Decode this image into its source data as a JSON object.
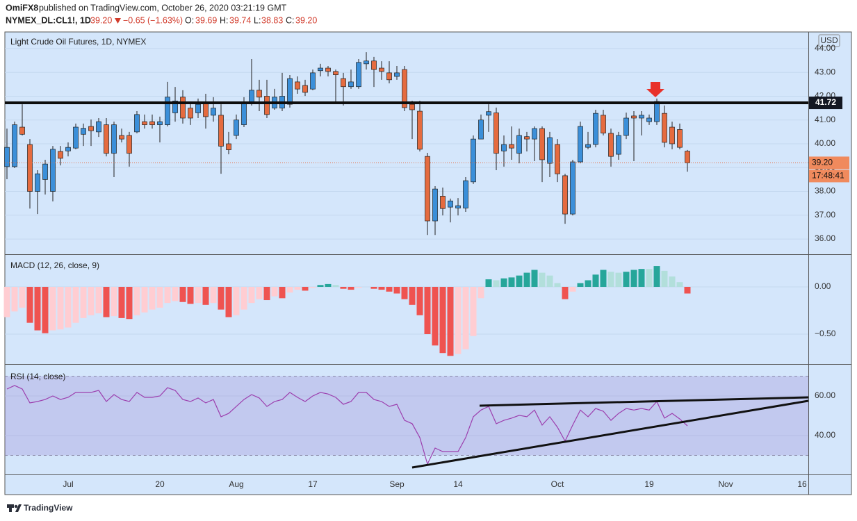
{
  "header": {
    "author": "OmiFX8",
    "text": "published on TradingView.com, October 26, 2020 03:21:19 GMT",
    "symbol": "NYMEX_DL:CL1!, 1D",
    "change": {
      "value": -0.65,
      "label": "−0.65"
    },
    "change_pct": {
      "value": -1.63,
      "label": "(−1.63%)"
    },
    "o_label": "O:",
    "h_label": "H:",
    "l_label": "L:",
    "c_label": "C:"
  },
  "footer": {
    "logo": "TradingView"
  },
  "chart_data": [
    {
      "type": "candlestick",
      "title": "Light Crude Oil Futures, 1D, NYMEX",
      "currency": "USD",
      "up_color": "#3b8fd9",
      "down_color": "#e56b3f",
      "categories": [
        null,
        null,
        null,
        null,
        null,
        null,
        null,
        null,
        "Jul",
        null,
        null,
        null,
        null,
        null,
        null,
        null,
        null,
        null,
        null,
        null,
        "20",
        null,
        null,
        null,
        null,
        null,
        null,
        null,
        null,
        null,
        "Aug",
        null,
        null,
        null,
        null,
        null,
        null,
        null,
        null,
        null,
        "17",
        null,
        null,
        null,
        null,
        null,
        null,
        null,
        null,
        null,
        null,
        "Sep",
        null,
        null,
        null,
        null,
        null,
        null,
        null,
        "14",
        null,
        null,
        null,
        null,
        null,
        null,
        null,
        null,
        null,
        null,
        null,
        null,
        "Oct",
        null,
        null,
        null,
        null,
        null,
        null,
        null,
        null,
        null,
        null,
        null,
        "19",
        null,
        null,
        null,
        null,
        null,
        null,
        null,
        null,
        null,
        "Nov",
        null,
        null,
        null,
        null,
        null,
        null,
        null,
        null,
        null,
        "16"
      ],
      "open": [
        39.04,
        39.04,
        40.7,
        39.97,
        38.0,
        38.5,
        38.0,
        39.68,
        39.7,
        39.82,
        40.4,
        40.73,
        40.5,
        40.8,
        39.6,
        40.35,
        40.35,
        40.5,
        40.93,
        40.93,
        40.8,
        40.8,
        41.3,
        41.96,
        41.5,
        41.3,
        41.72,
        41.2,
        41.2,
        40.0,
        40.35,
        40.8,
        41.72,
        42.25,
        42.0,
        41.5,
        41.5,
        41.66,
        42.6,
        42.45,
        42.3,
        43.07,
        43.18,
        43.04,
        42.74,
        42.4,
        42.4,
        43.36,
        43.48,
        43.18,
        42.98,
        42.83,
        43.12,
        41.66,
        41.37,
        39.47,
        36.76,
        37.8,
        37.34,
        37.3,
        37.3,
        38.4,
        40.2,
        41.2,
        41.3,
        39.7,
        39.97,
        39.6,
        40.3,
        40.2,
        40.64,
        39.18,
        39.97,
        38.66,
        37.05,
        39.24,
        39.85,
        39.97,
        41.2,
        40.44,
        39.56,
        40.35,
        41.17,
        41.08,
        40.93,
        40.93,
        41.28,
        40.7,
        40.6,
        39.69,
        null,
        null,
        null,
        null,
        null,
        null,
        null,
        null,
        null,
        null,
        null,
        null,
        null,
        null,
        null
      ],
      "high": [
        40.64,
        40.93,
        41.66,
        40.2,
        38.89,
        39.33,
        39.91,
        39.91,
        40.06,
        40.85,
        40.85,
        41.02,
        41.08,
        41.08,
        40.93,
        40.64,
        40.5,
        41.37,
        41.23,
        41.23,
        41.14,
        42.6,
        42.39,
        42.25,
        41.72,
        41.9,
        42.1,
        41.96,
        41.66,
        40.5,
        41.23,
        41.96,
        43.56,
        42.69,
        42.69,
        42.31,
        42.98,
        42.89,
        42.83,
        42.69,
        43.12,
        43.36,
        43.27,
        43.12,
        42.98,
        43.12,
        43.56,
        43.85,
        43.65,
        43.47,
        43.47,
        43.27,
        43.27,
        41.81,
        41.81,
        39.62,
        38.22,
        38.16,
        37.7,
        37.72,
        38.6,
        40.35,
        41.23,
        41.66,
        41.52,
        40.35,
        40.73,
        40.64,
        40.5,
        40.73,
        40.73,
        40.5,
        40.2,
        38.74,
        39.33,
        40.93,
        40.5,
        41.43,
        41.43,
        40.64,
        40.5,
        41.31,
        41.37,
        41.37,
        41.23,
        41.9,
        41.61,
        40.93,
        40.85,
        39.74,
        null,
        null,
        null,
        null,
        null,
        null,
        null,
        null,
        null,
        null,
        null,
        null,
        null,
        null,
        null
      ],
      "low": [
        38.51,
        38.98,
        40.35,
        37.28,
        37.05,
        37.87,
        37.58,
        39.09,
        39.47,
        39.77,
        39.91,
        39.91,
        40.29,
        39.47,
        38.6,
        40.06,
        39.04,
        40.44,
        40.64,
        40.64,
        40.06,
        40.73,
        40.93,
        40.85,
        40.79,
        41.08,
        40.64,
        40.93,
        38.74,
        39.56,
        40.2,
        40.7,
        41.61,
        41.37,
        41.08,
        41.43,
        41.37,
        41.52,
        42.1,
        42.01,
        42.25,
        42.83,
        42.83,
        41.72,
        41.61,
        42.31,
        42.31,
        43.12,
        42.39,
        42.69,
        42.54,
        42.69,
        41.37,
        40.2,
        39.68,
        36.17,
        36.17,
        36.99,
        36.7,
        36.99,
        37.14,
        38.31,
        40.2,
        40.5,
        38.89,
        39.04,
        39.33,
        39.18,
        39.68,
        39.27,
        38.39,
        38.6,
        38.39,
        36.64,
        36.99,
        39.18,
        39.77,
        39.85,
        40.35,
        39.04,
        39.33,
        40.2,
        39.27,
        40.35,
        40.79,
        40.79,
        39.85,
        39.77,
        39.77,
        38.83,
        null,
        null,
        null,
        null,
        null,
        null,
        null,
        null,
        null,
        null,
        null,
        null,
        null,
        null,
        null
      ],
      "close": [
        39.85,
        40.8,
        40.4,
        38.0,
        38.74,
        39.15,
        39.77,
        39.39,
        39.85,
        40.7,
        40.65,
        40.55,
        40.93,
        39.6,
        40.8,
        40.2,
        39.6,
        41.23,
        40.8,
        40.8,
        40.93,
        41.96,
        41.8,
        41.08,
        41.08,
        41.66,
        41.14,
        41.5,
        39.9,
        39.75,
        41.0,
        41.72,
        42.25,
        41.96,
        41.23,
        41.96,
        42.0,
        42.74,
        42.3,
        42.16,
        42.98,
        43.18,
        43.04,
        42.9,
        42.4,
        42.6,
        43.42,
        43.48,
        43.12,
        43.04,
        42.69,
        42.98,
        41.52,
        41.43,
        39.77,
        36.76,
        38.1,
        37.28,
        37.6,
        37.4,
        38.45,
        40.2,
        41.0,
        41.35,
        39.6,
        39.97,
        39.82,
        40.35,
        40.2,
        40.64,
        39.33,
        40.26,
        38.74,
        37.05,
        39.24,
        40.73,
        39.97,
        41.28,
        40.45,
        39.47,
        40.35,
        41.08,
        41.08,
        41.2,
        41.08,
        41.78,
        40.06,
        40.0,
        39.85,
        39.2,
        null,
        null,
        null,
        null,
        null,
        null,
        null,
        null,
        null,
        null,
        null,
        null,
        null,
        null,
        null
      ],
      "last_price": {
        "value": 39.2,
        "label": "39.20"
      },
      "countdown": "17:48:41",
      "resistance": 41.72,
      "ylim": [
        35.36,
        44.64
      ],
      "yticks": [
        {
          "value": 44,
          "label": "44.00"
        },
        {
          "value": 43,
          "label": "43.00"
        },
        {
          "value": 42,
          "label": "42.00"
        },
        {
          "value": 41,
          "label": "41.00"
        },
        {
          "value": 40,
          "label": "40.00"
        },
        {
          "value": 39,
          "label": "39.00"
        },
        {
          "value": 38,
          "label": "38.00"
        },
        {
          "value": 37,
          "label": "37.00"
        },
        {
          "value": 36,
          "label": "36.00"
        }
      ],
      "grid": true
    },
    {
      "type": "bar",
      "title": "MACD (12, 26, close, 9)",
      "colors": {
        "positive_rising": "#26a69a",
        "positive_falling": "#b2dfdb",
        "negative_falling": "#ef5350",
        "negative_rising": "#ffcdd2"
      },
      "values": [
        -0.32,
        -0.26,
        -0.22,
        -0.38,
        -0.46,
        -0.49,
        -0.46,
        -0.45,
        -0.43,
        -0.38,
        -0.33,
        -0.3,
        -0.28,
        -0.32,
        -0.31,
        -0.33,
        -0.34,
        -0.3,
        -0.27,
        -0.24,
        -0.22,
        -0.17,
        -0.15,
        -0.16,
        -0.18,
        -0.17,
        -0.19,
        -0.17,
        -0.24,
        -0.32,
        -0.3,
        -0.24,
        -0.17,
        -0.13,
        -0.14,
        -0.1,
        -0.12,
        -0.06,
        -0.03,
        -0.04,
        -0.01,
        0.02,
        0.03,
        0.02,
        -0.02,
        -0.03,
        -0.01,
        0.0,
        -0.02,
        -0.03,
        -0.05,
        -0.07,
        -0.13,
        -0.19,
        -0.3,
        -0.5,
        -0.62,
        -0.7,
        -0.73,
        -0.71,
        -0.66,
        -0.52,
        -0.12,
        0.08,
        0.07,
        0.09,
        0.1,
        0.12,
        0.15,
        0.18,
        0.15,
        0.12,
        0.04,
        -0.13,
        -0.05,
        0.04,
        0.07,
        0.13,
        0.18,
        0.16,
        0.15,
        0.16,
        0.18,
        0.19,
        0.19,
        0.22,
        0.17,
        0.11,
        0.05,
        -0.07,
        null,
        null,
        null,
        null,
        null,
        null,
        null,
        null,
        null,
        null,
        null,
        null,
        null,
        null,
        null
      ],
      "ylim": [
        -0.816,
        0.338
      ],
      "yticks": [
        {
          "value": 0,
          "label": "0.00"
        },
        {
          "value": -0.5,
          "label": "−0.50"
        }
      ],
      "grid": true
    },
    {
      "type": "line",
      "title": "RSI (14, close)",
      "color": "#9c3fae",
      "band": [
        30,
        70
      ],
      "band_color": "#7e57c2",
      "values": [
        63.5,
        65.3,
        63.5,
        56.5,
        57.2,
        58.2,
        60.0,
        58.2,
        59.3,
        61.8,
        61.8,
        61.8,
        62.8,
        57.2,
        60.7,
        58.2,
        57.2,
        61.8,
        59.3,
        59.3,
        60.0,
        64.2,
        62.8,
        58.2,
        57.2,
        59.0,
        56.5,
        58.2,
        49.5,
        51.2,
        54.7,
        58.2,
        60.7,
        59.0,
        54.7,
        57.2,
        58.2,
        61.8,
        59.3,
        57.2,
        60.0,
        61.8,
        61.0,
        59.3,
        55.8,
        57.2,
        61.8,
        61.8,
        58.2,
        57.2,
        54.7,
        55.8,
        47.7,
        46.0,
        39.0,
        25.6,
        33.7,
        31.9,
        31.9,
        31.9,
        39.0,
        49.5,
        52.9,
        54.7,
        46.0,
        47.7,
        48.8,
        50.2,
        49.5,
        52.9,
        45.3,
        49.5,
        44.2,
        37.2,
        45.3,
        52.9,
        49.5,
        53.7,
        52.3,
        47.7,
        51.2,
        53.7,
        52.9,
        53.7,
        52.9,
        57.2,
        48.8,
        51.2,
        48.4,
        44.9,
        null,
        null,
        null,
        null,
        null,
        null,
        null,
        null,
        null,
        null,
        null,
        null,
        null,
        null,
        null
      ],
      "ylim": [
        20.35,
        75.8
      ],
      "yticks": [
        {
          "value": 60,
          "label": "60.00"
        },
        {
          "value": 40,
          "label": "40.00"
        }
      ],
      "grid": true
    }
  ]
}
